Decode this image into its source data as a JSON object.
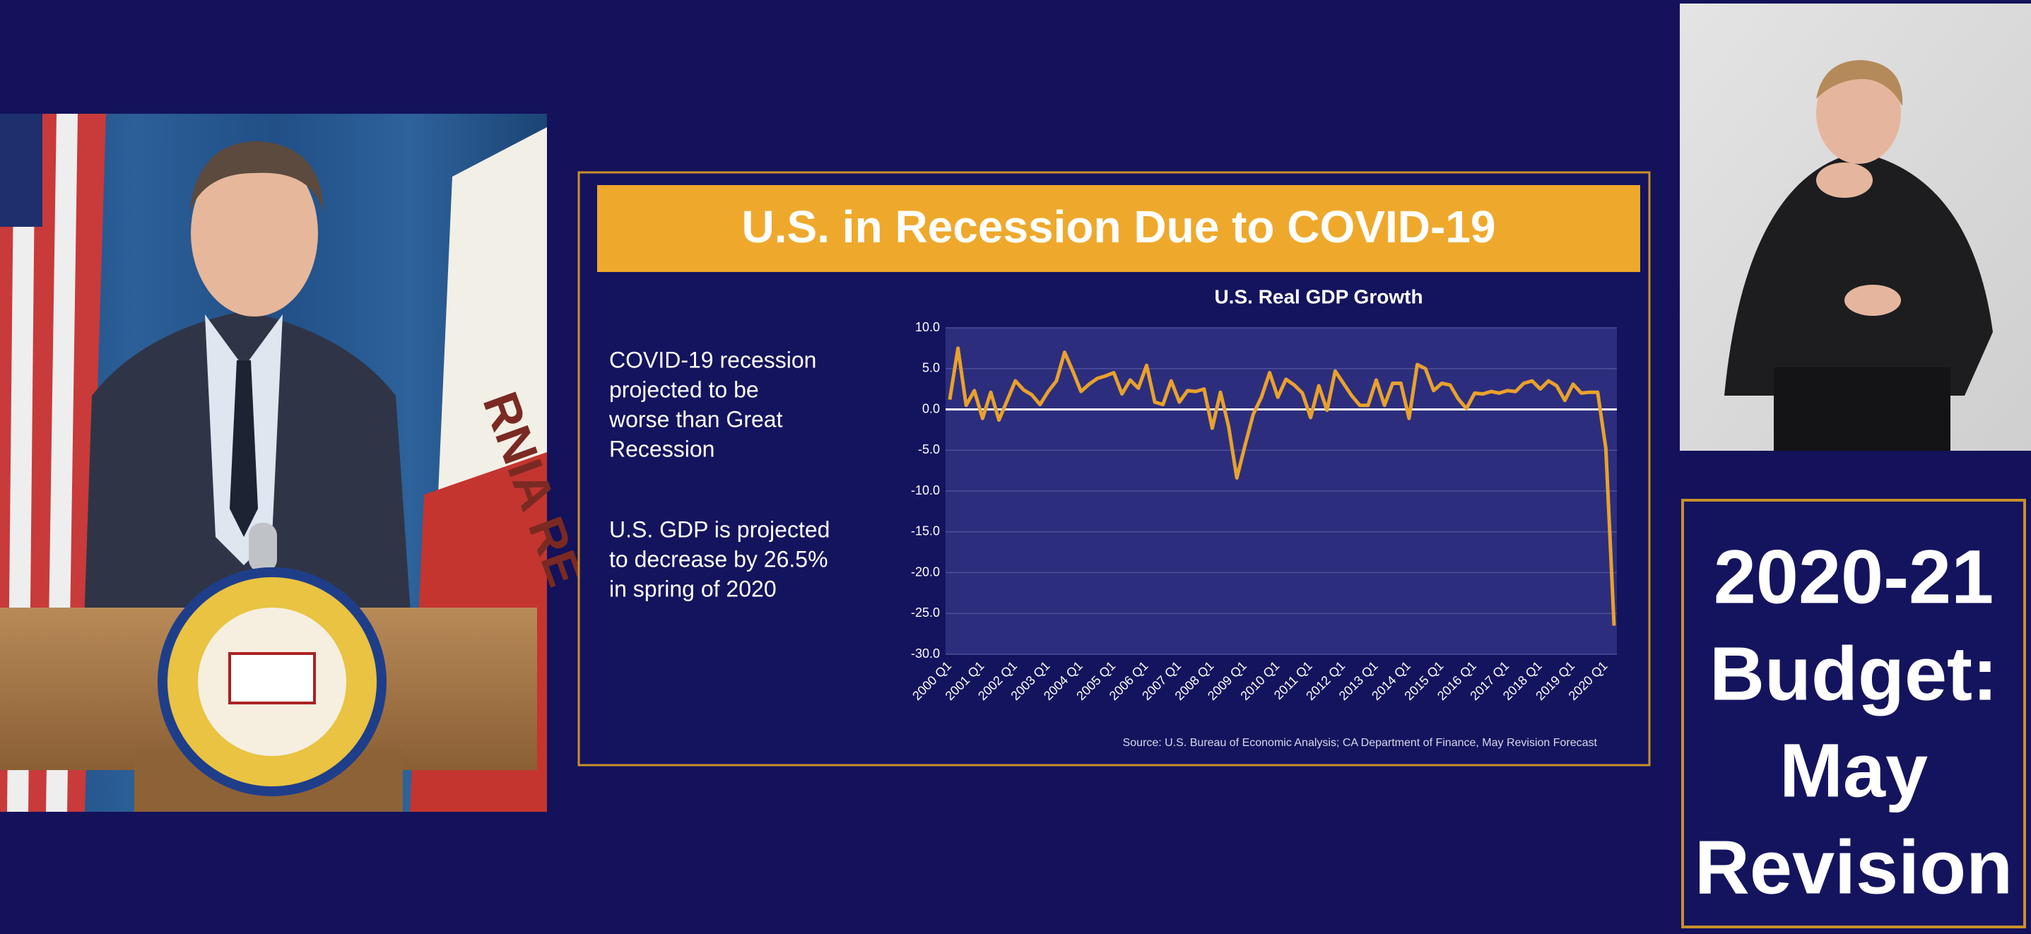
{
  "slide": {
    "title": "U.S. in Recession Due to COVID-19",
    "bullets": [
      [
        "COVID-19 recession",
        "projected to be",
        "worse than Great",
        "Recession"
      ],
      [
        "U.S. GDP is projected",
        "to decrease by 26.5%",
        "in spring of 2020"
      ]
    ],
    "source": "Source: U.S. Bureau of Economic Analysis; CA Department of Finance, May Revision Forecast"
  },
  "chart_data": {
    "type": "line",
    "title": "U.S. Real GDP Growth",
    "categories": [
      "2000 Q1",
      null,
      null,
      null,
      "2001 Q1",
      null,
      null,
      null,
      "2002 Q1",
      null,
      null,
      null,
      "2003 Q1",
      null,
      null,
      null,
      "2004 Q1",
      null,
      null,
      null,
      "2005 Q1",
      null,
      null,
      null,
      "2006 Q1",
      null,
      null,
      null,
      "2007 Q1",
      null,
      null,
      null,
      "2008 Q1",
      null,
      null,
      null,
      "2009 Q1",
      null,
      null,
      null,
      "2010 Q1",
      null,
      null,
      null,
      "2011 Q1",
      null,
      null,
      null,
      "2012 Q1",
      null,
      null,
      null,
      "2013 Q1",
      null,
      null,
      null,
      "2014 Q1",
      null,
      null,
      null,
      "2015 Q1",
      null,
      null,
      null,
      "2016 Q1",
      null,
      null,
      null,
      "2017 Q1",
      null,
      null,
      null,
      "2018 Q1",
      null,
      null,
      null,
      "2019 Q1",
      null,
      null,
      null,
      "2020 Q1",
      null
    ],
    "values": [
      1.2,
      7.5,
      0.5,
      2.3,
      -1.1,
      2.1,
      -1.3,
      1.1,
      3.5,
      2.4,
      1.8,
      0.6,
      2.2,
      3.5,
      7.0,
      4.7,
      2.2,
      3.1,
      3.8,
      4.1,
      4.5,
      1.9,
      3.6,
      2.6,
      5.4,
      0.9,
      0.6,
      3.5,
      0.9,
      2.3,
      2.2,
      2.5,
      -2.3,
      2.1,
      -2.1,
      -8.4,
      -4.4,
      -0.6,
      1.5,
      4.5,
      1.5,
      3.7,
      3.0,
      2.0,
      -1.0,
      2.9,
      -0.1,
      4.7,
      3.2,
      1.7,
      0.5,
      0.5,
      3.6,
      0.5,
      3.2,
      3.2,
      -1.1,
      5.5,
      5.0,
      2.3,
      3.2,
      3.0,
      1.3,
      0.1,
      2.0,
      1.9,
      2.2,
      2.0,
      2.3,
      2.2,
      3.2,
      3.5,
      2.5,
      3.5,
      2.9,
      1.1,
      3.1,
      2.0,
      2.1,
      2.1,
      -4.8,
      -26.5
    ],
    "color": "#e9a12c",
    "ylim": [
      -30,
      10
    ],
    "yticks": [
      {
        "value": 10,
        "label": "10.0"
      },
      {
        "value": 5,
        "label": "5.0"
      },
      {
        "value": 0,
        "label": "0.0"
      },
      {
        "value": -5,
        "label": "-5.0"
      },
      {
        "value": -10,
        "label": "-10.0"
      },
      {
        "value": -15,
        "label": "-15.0"
      },
      {
        "value": -20,
        "label": "-20.0"
      },
      {
        "value": -25,
        "label": "-25.0"
      },
      {
        "value": -30,
        "label": "-30.0"
      }
    ],
    "grid": true
  },
  "sidebar": {
    "lines": [
      "2020-21",
      "Budget:",
      "May",
      "Revision"
    ]
  }
}
